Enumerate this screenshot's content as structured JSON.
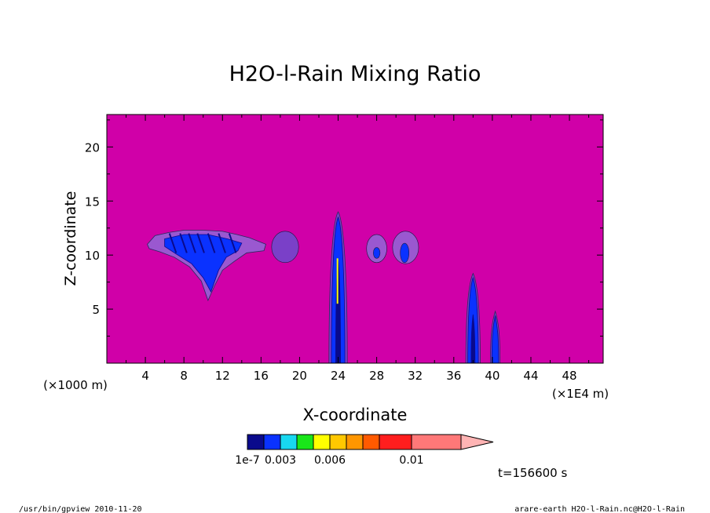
{
  "chart_data": {
    "type": "contour",
    "title": "H2O-l-Rain Mixing Ratio",
    "xlabel": "X-coordinate",
    "ylabel": "Z-coordinate",
    "x_unit": "(×1E4 m)",
    "y_unit": "(×1000 m)",
    "xlim": [
      0,
      51.5
    ],
    "ylim": [
      0,
      23
    ],
    "x_ticks": [
      4,
      8,
      12,
      16,
      20,
      24,
      28,
      32,
      36,
      40,
      44,
      48
    ],
    "y_ticks": [
      5,
      10,
      15,
      20
    ],
    "background_color": "#d000a8",
    "colorbar": {
      "colors": [
        "#0a0a8c",
        "#0a32ff",
        "#18d8f0",
        "#19e619",
        "#ffff00",
        "#ffc800",
        "#ff9600",
        "#ff5a00",
        "#ff1e1e",
        "#ff7878"
      ],
      "extend_color": "#ffb4b4",
      "labels": [
        "1e-7",
        "0.003",
        "0.006",
        "0.01"
      ]
    },
    "features": [
      {
        "name": "cloud-cluster-8-15",
        "x": 11,
        "z_top": 12,
        "z_bottom": 5.8
      },
      {
        "name": "blob-18",
        "x": 18.5,
        "z_top": 12.2,
        "z_bottom": 9.3
      },
      {
        "name": "column-24",
        "x": 24,
        "z_top": 14,
        "z_bottom": 0
      },
      {
        "name": "blob-28",
        "x": 28,
        "z_top": 11.9,
        "z_bottom": 9.4
      },
      {
        "name": "blob-31",
        "x": 31,
        "z_top": 12.2,
        "z_bottom": 9.1
      },
      {
        "name": "column-38",
        "x": 38,
        "z_top": 8.3,
        "z_bottom": 0
      },
      {
        "name": "column-40",
        "x": 40.3,
        "z_top": 4.8,
        "z_bottom": 0
      }
    ]
  },
  "time_label": "t=156600 s",
  "footer_left": "/usr/bin/gpview   2010-11-20",
  "footer_right": "arare-earth_H2O-l-Rain.nc@H2O-l-Rain"
}
